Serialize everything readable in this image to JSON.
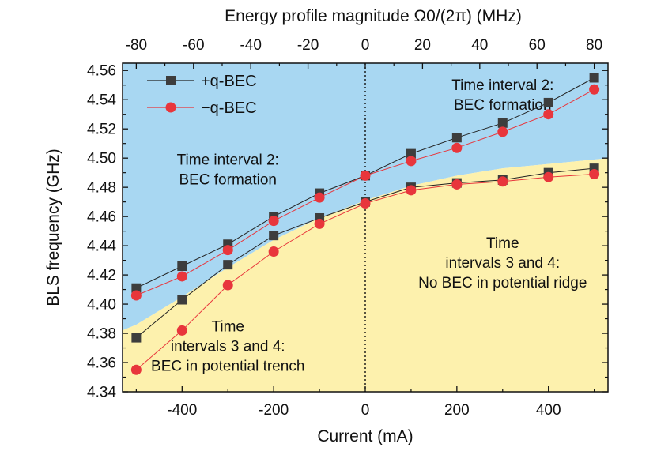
{
  "chart_data": {
    "type": "line",
    "title": "",
    "xlabel": "Current (mA)",
    "ylabel": "BLS frequency (GHz)",
    "top_xlabel": "Energy profile magnitude Ω0/(2π) (MHz)",
    "xlim": [
      -530,
      530
    ],
    "ylim": [
      4.34,
      4.565
    ],
    "top_xlim": [
      -84.8,
      84.8
    ],
    "x_ticks": [
      -400,
      -200,
      0,
      200,
      400
    ],
    "x_tick_labels": [
      "-400",
      "-200",
      "0",
      "200",
      "400"
    ],
    "y_ticks": [
      4.34,
      4.36,
      4.38,
      4.4,
      4.42,
      4.44,
      4.46,
      4.48,
      4.5,
      4.52,
      4.54,
      4.56
    ],
    "y_tick_labels": [
      "4.34",
      "4.36",
      "4.38",
      "4.40",
      "4.42",
      "4.44",
      "4.46",
      "4.48",
      "4.50",
      "4.52",
      "4.54",
      "4.56"
    ],
    "top_ticks": [
      -80,
      -60,
      -40,
      -20,
      0,
      20,
      40,
      60,
      80
    ],
    "top_tick_labels": [
      "-80",
      "-60",
      "-40",
      "-20",
      "0",
      "20",
      "40",
      "60",
      "80"
    ],
    "grid": false,
    "legend_position": "top-left",
    "legend": [
      {
        "series": 0,
        "label": "+q-BEC"
      },
      {
        "series": 1,
        "label": "−q-BEC"
      }
    ],
    "series": [
      {
        "name": "+q-BEC",
        "marker": "square",
        "color": "#3d3d3d",
        "branch": "upper",
        "x": [
          -500,
          -400,
          -300,
          -200,
          -100,
          0,
          100,
          200,
          300,
          400,
          500
        ],
        "y": [
          4.411,
          4.426,
          4.441,
          4.46,
          4.476,
          4.488,
          4.503,
          4.514,
          4.524,
          4.538,
          4.555
        ]
      },
      {
        "name": "+q-BEC",
        "marker": "square",
        "color": "#3d3d3d",
        "branch": "lower",
        "x": [
          -500,
          -400,
          -300,
          -200,
          -100,
          0,
          100,
          200,
          300,
          400,
          500
        ],
        "y": [
          4.377,
          4.403,
          4.427,
          4.447,
          4.459,
          4.47,
          4.48,
          4.483,
          4.485,
          4.49,
          4.493
        ]
      },
      {
        "name": "−q-BEC",
        "marker": "circle",
        "color": "#e8363c",
        "branch": "upper",
        "x": [
          -500,
          -400,
          -300,
          -200,
          -100,
          0,
          100,
          200,
          300,
          400,
          500
        ],
        "y": [
          4.406,
          4.419,
          4.437,
          4.457,
          4.473,
          4.488,
          4.498,
          4.507,
          4.518,
          4.53,
          4.547
        ]
      },
      {
        "name": "−q-BEC",
        "marker": "circle",
        "color": "#e8363c",
        "branch": "lower",
        "x": [
          -500,
          -400,
          -300,
          -200,
          -100,
          0,
          100,
          200,
          300,
          400,
          500
        ],
        "y": [
          4.355,
          4.382,
          4.413,
          4.436,
          4.455,
          4.469,
          4.478,
          4.482,
          4.484,
          4.487,
          4.489
        ]
      }
    ],
    "boundary": {
      "x": [
        -530,
        -500,
        -400,
        -300,
        -200,
        -100,
        0,
        100,
        200,
        300,
        400,
        500,
        530
      ],
      "y": [
        4.382,
        4.386,
        4.405,
        4.425,
        4.444,
        4.459,
        4.471,
        4.481,
        4.488,
        4.493,
        4.496,
        4.499,
        4.5
      ]
    },
    "region_colors": {
      "upper": "#a8d7f2",
      "lower": "#fdf1ad"
    },
    "annotations": [
      {
        "lines": [
          "Time interval 2:",
          "BEC formation"
        ],
        "x": 300,
        "y": 4.5465
      },
      {
        "lines": [
          "Time interval 2:",
          "BEC formation"
        ],
        "x": -300,
        "y": 4.4955
      },
      {
        "lines": [
          "Time",
          "intervals 3 and 4:",
          "No BEC in potential ridge"
        ],
        "x": 300,
        "y": 4.4385
      },
      {
        "lines": [
          "Time",
          "intervals 3 and 4:",
          "BEC in potential trench"
        ],
        "x": -300,
        "y": 4.3815
      }
    ],
    "vertical_line": {
      "x": 0,
      "style": "dotted"
    }
  }
}
